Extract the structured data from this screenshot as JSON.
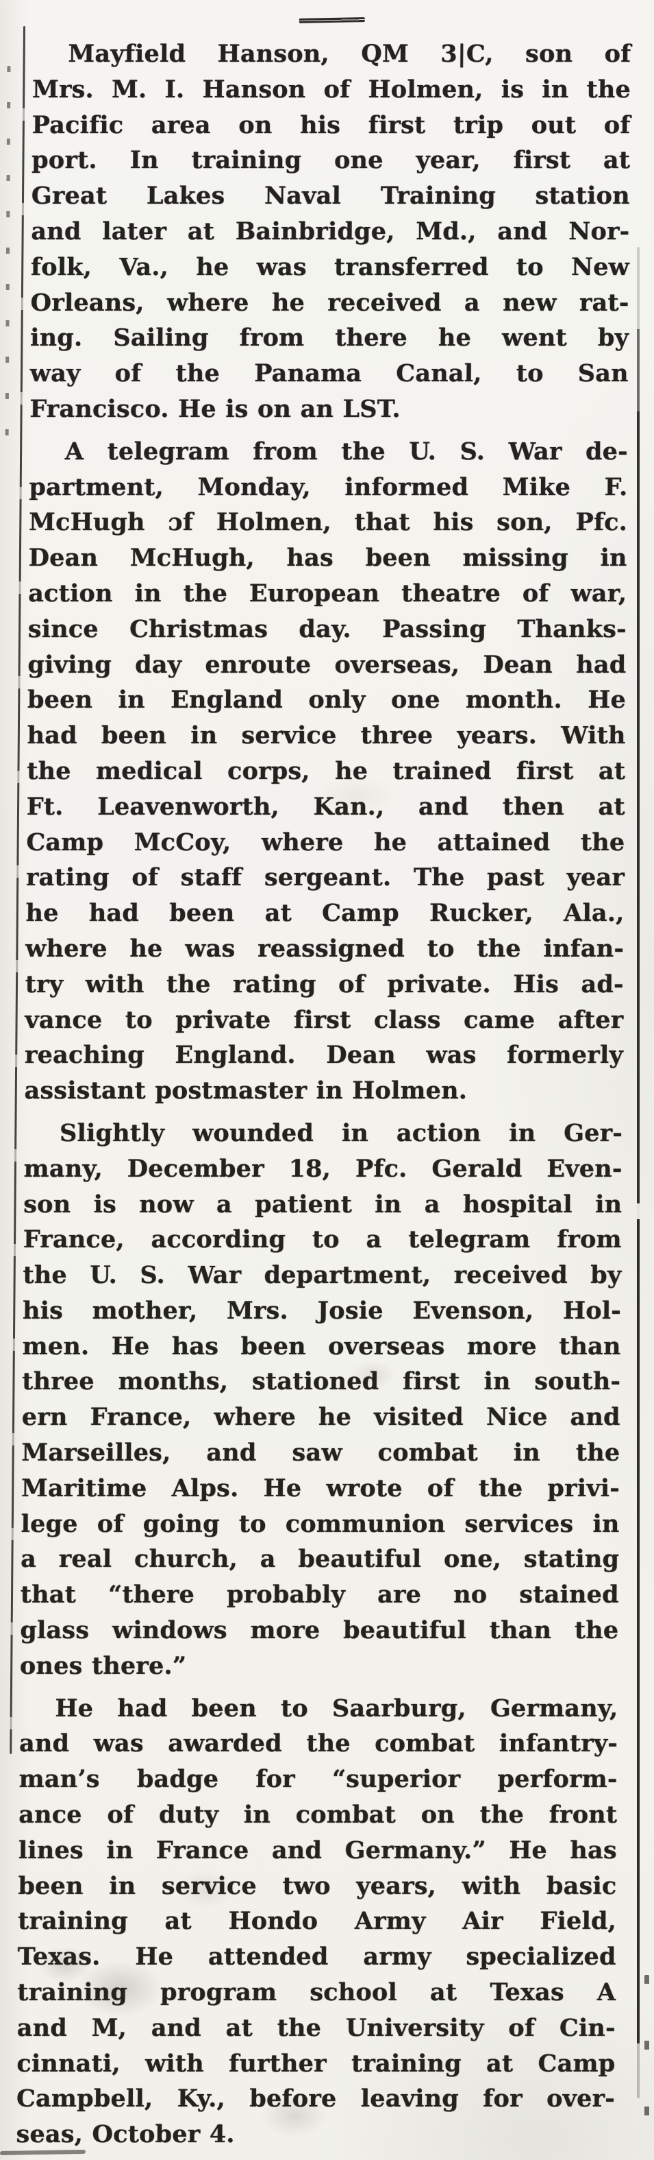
{
  "document": {
    "type_label": "scanned newspaper clipping column",
    "divider_glyph": "—",
    "article": {
      "paragraphs": [
        {
          "lines": [
            "Mayfield Hanson, QM 3|C, son of",
            "Mrs. M. I. Hanson of Holmen, is in the",
            "Pacific area on his first trip out of",
            "port. In training one year, first at",
            "Great Lakes Naval Training station",
            "and later at Bainbridge, Md., and Nor-",
            "folk, Va., he was transferred to New",
            "Orleans, where he received a new rat-",
            "ing. Sailing from there he went by",
            "way of the Panama Canal, to San",
            "Francisco. He is on an LST."
          ]
        },
        {
          "lines": [
            "A telegram from the U. S. War de-",
            "partment, Monday, informed Mike F.",
            "McHugh ɔf Holmen, that his son, Pfc.",
            "Dean McHugh, has been missing in",
            "action in the European theatre of war,",
            "since Christmas day. Passing Thanks-",
            "giving day enroute overseas, Dean had",
            "been in England only one month. He",
            "had been in service three years. With",
            "the medical corps, he trained first at",
            "Ft. Leavenworth, Kan., and then at",
            "Camp McCoy, where he attained the",
            "rating of staff sergeant. The past year",
            "he had been at Camp Rucker, Ala.,",
            "where he was reassigned to the infan-",
            "try with the rating of private. His ad-",
            "vance to private first class came after",
            "reaching England. Dean was formerly",
            "assistant postmaster in Holmen."
          ]
        },
        {
          "lines": [
            "Slightly wounded in action in Ger-",
            "many, December 18, Pfc. Gerald Even-",
            "son is now a patient in a hospital in",
            "France, according to a telegram from",
            "the U. S. War department, received by",
            "his mother, Mrs. Josie Evenson, Hol-",
            "men. He has been overseas more than",
            "three months, stationed first in south-",
            "ern France, where he visited Nice and",
            "Marseilles, and saw combat in the",
            "Maritime Alps. He wrote of the privi-",
            "lege of going to communion services in",
            "a real church, a beautiful one, stating",
            "that “there probably are no stained",
            "glass windows more beautiful than the",
            "ones there.”"
          ]
        },
        {
          "lines": [
            "He had been to Saarburg, Germany,",
            "and was awarded the combat infantry-",
            "man’s badge for “superior perform-",
            "ance of duty in combat on the front",
            "lines in France and Germany.” He has",
            "been in service two years, with basic",
            "training at Hondo Army Air Field,",
            "Texas. He attended army specialized",
            "training program school at Texas A",
            "and M, and at the University of Cin-",
            "cinnati, with further training at Camp",
            "Campbell, Ky., before leaving for over-",
            "seas, October 4."
          ]
        }
      ]
    }
  },
  "colors": {
    "paper": "#f4f3ef",
    "ink": "#24221f",
    "rule": "#2e2c29"
  }
}
